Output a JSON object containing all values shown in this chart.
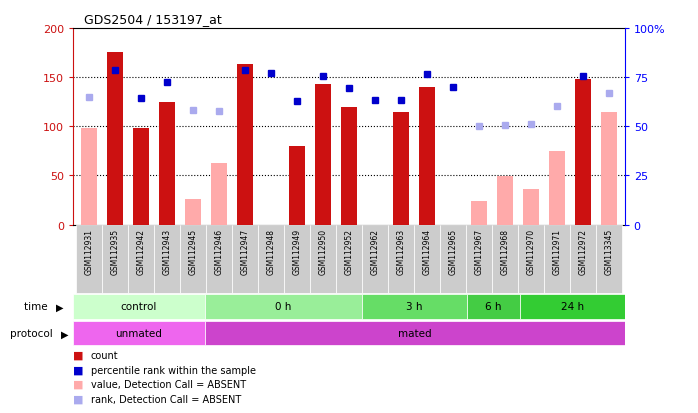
{
  "title": "GDS2504 / 153197_at",
  "samples": [
    "GSM112931",
    "GSM112935",
    "GSM112942",
    "GSM112943",
    "GSM112945",
    "GSM112946",
    "GSM112947",
    "GSM112948",
    "GSM112949",
    "GSM112950",
    "GSM112952",
    "GSM112962",
    "GSM112963",
    "GSM112964",
    "GSM112965",
    "GSM112967",
    "GSM112968",
    "GSM112970",
    "GSM112971",
    "GSM112972",
    "GSM113345"
  ],
  "count_values": [
    null,
    176,
    98,
    125,
    null,
    null,
    163,
    null,
    80,
    143,
    120,
    null,
    115,
    140,
    null,
    null,
    null,
    null,
    null,
    148,
    null
  ],
  "count_absent_values": [
    98,
    null,
    null,
    null,
    26,
    63,
    null,
    null,
    null,
    null,
    null,
    null,
    null,
    null,
    null,
    24,
    49,
    36,
    75,
    null,
    115
  ],
  "rank_values": [
    null,
    157,
    129,
    145,
    null,
    null,
    157,
    154,
    126,
    151,
    139,
    127,
    127,
    153,
    140,
    null,
    null,
    null,
    null,
    151,
    null
  ],
  "rank_absent_values": [
    130,
    null,
    null,
    null,
    117,
    116,
    null,
    null,
    null,
    null,
    null,
    null,
    null,
    null,
    null,
    100,
    101,
    102,
    121,
    null,
    134
  ],
  "time_groups": [
    {
      "label": "control",
      "start": 0,
      "end": 5
    },
    {
      "label": "0 h",
      "start": 5,
      "end": 11
    },
    {
      "label": "3 h",
      "start": 11,
      "end": 15
    },
    {
      "label": "6 h",
      "start": 15,
      "end": 17
    },
    {
      "label": "24 h",
      "start": 17,
      "end": 21
    }
  ],
  "time_colors": [
    "#ccffcc",
    "#99ee99",
    "#66dd66",
    "#44cc44",
    "#33cc33"
  ],
  "protocol_groups": [
    {
      "label": "unmated",
      "start": 0,
      "end": 5
    },
    {
      "label": "mated",
      "start": 5,
      "end": 21
    }
  ],
  "protocol_colors": [
    "#ee66ee",
    "#cc44cc"
  ],
  "ylim_left": [
    0,
    200
  ],
  "ylim_right": [
    0,
    100
  ],
  "yticks_left": [
    0,
    50,
    100,
    150,
    200
  ],
  "yticks_right": [
    0,
    25,
    50,
    75,
    100
  ],
  "ytick_labels_right": [
    "0",
    "25",
    "50",
    "75",
    "100%"
  ],
  "bar_color_red": "#cc1111",
  "bar_color_pink": "#ffaaaa",
  "dot_color_blue": "#0000cc",
  "dot_color_lightblue": "#aaaaee",
  "legend_labels": [
    "count",
    "percentile rank within the sample",
    "value, Detection Call = ABSENT",
    "rank, Detection Call = ABSENT"
  ]
}
